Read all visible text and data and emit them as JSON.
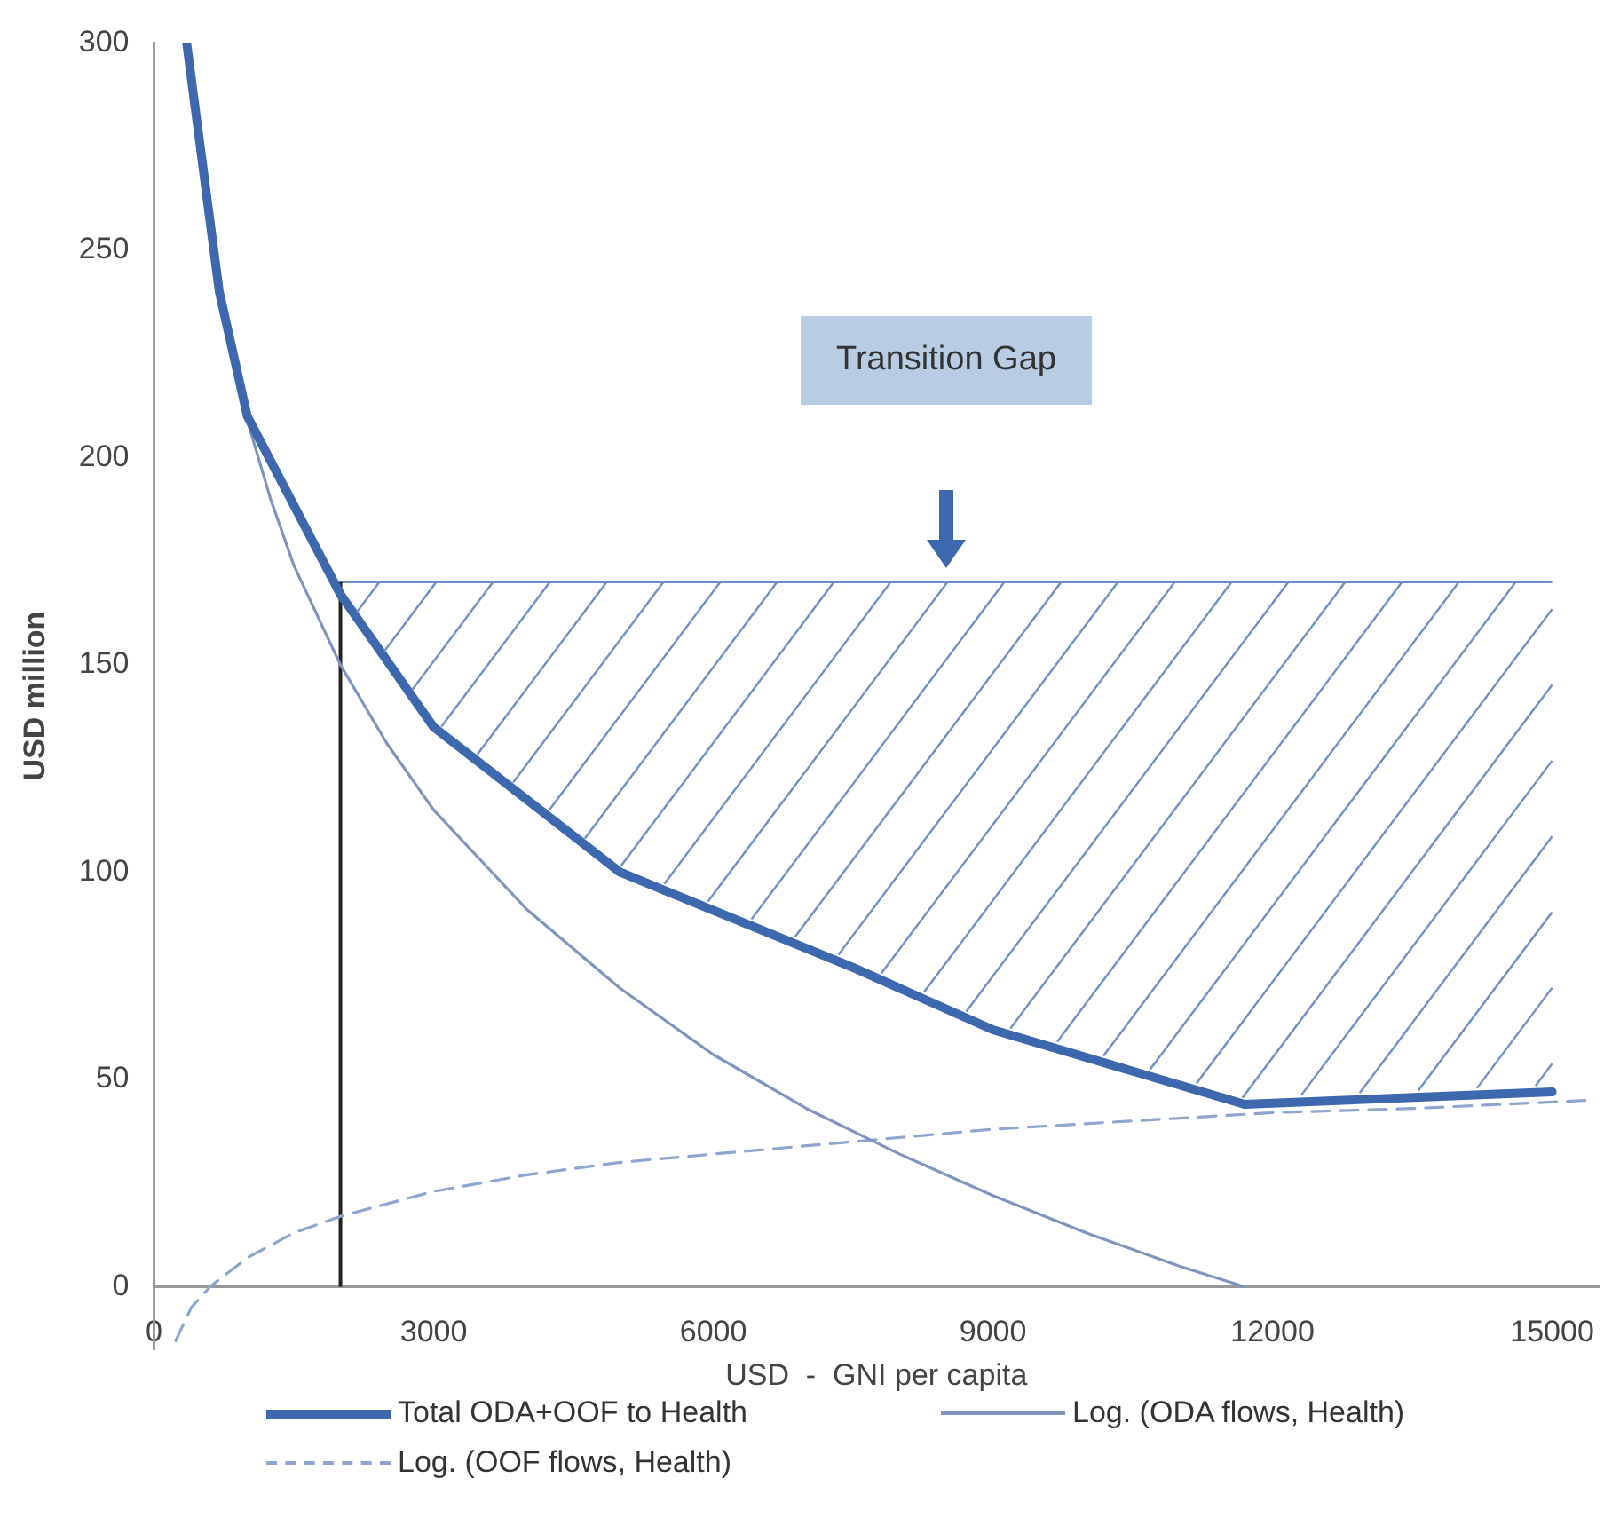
{
  "chart_data": {
    "type": "line",
    "xlabel": "USD  -  GNI per capita",
    "ylabel": "USD million",
    "xlim": [
      0,
      15500
    ],
    "xticks": [
      0,
      3000,
      6000,
      9000,
      12000,
      15000
    ],
    "ylim": [
      -15,
      300
    ],
    "yticks": [
      0,
      50,
      100,
      150,
      200,
      250,
      300
    ],
    "grid": false,
    "legend": "bottom",
    "marker": "none",
    "series": [
      {
        "name": "Total ODA+OOF to Health",
        "color": "#3d68ae",
        "line_style": "solid",
        "x": [
          350,
          700,
          1000,
          2000,
          3000,
          5000,
          7500,
          9000,
          11700,
          15000
        ],
        "values": [
          300,
          240,
          210,
          167,
          135,
          100,
          77,
          62,
          44,
          47
        ]
      },
      {
        "name": "Log. (ODA flows, Health)",
        "color": "#7f95bd",
        "line_style": "solid",
        "x": [
          875,
          1000,
          1250,
          1500,
          2000,
          2500,
          3000,
          4000,
          5000,
          6000,
          7000,
          8000,
          9000,
          10000,
          11000,
          11700
        ],
        "values": [
          220,
          209,
          190,
          174,
          150,
          131,
          115,
          91,
          72,
          56,
          43,
          32,
          22,
          13,
          5,
          0
        ]
      },
      {
        "name": "Log. (OOF flows, Health)",
        "color": "#8ea6cf",
        "line_style": "dashed",
        "x": [
          233,
          400,
          600,
          1000,
          1500,
          2000,
          3000,
          4000,
          5000,
          6000,
          7500,
          9000,
          10500,
          12000,
          13500,
          15400
        ],
        "values": [
          -13,
          -5,
          0,
          7,
          13,
          17,
          23,
          27,
          30,
          32,
          35,
          38,
          40,
          42,
          43,
          45
        ]
      }
    ],
    "ref_lines": [
      {
        "axis": "y",
        "value": 170,
        "color": "#6f8fc6"
      },
      {
        "axis": "x",
        "value": 2000,
        "color": "#222222"
      }
    ],
    "annotations": [
      "Transition Gap"
    ]
  }
}
